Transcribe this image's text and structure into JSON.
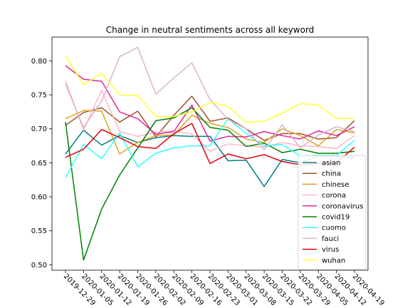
{
  "chart_data": {
    "type": "line",
    "title": "Change in neutral sentiments across all keyword",
    "xlabel": "",
    "ylabel": "",
    "x": [
      "2019-12-29",
      "2020-01-05",
      "2020-01-12",
      "2020-01-19",
      "2020-01-26",
      "2020-02-02",
      "2020-02-09",
      "2020-02-16",
      "2020-02-23",
      "2020-03-01",
      "2020-03-08",
      "2020-03-15",
      "2020-03-22",
      "2020-03-29",
      "2020-04-05",
      "2020-04-12",
      "2020-04-19"
    ],
    "x_tick_step": 1,
    "ylim": [
      0.492,
      0.835
    ],
    "yticks": [
      0.5,
      0.55,
      0.6,
      0.65,
      0.7,
      0.75,
      0.8
    ],
    "grid": false,
    "legend_position": "lower right",
    "series": [
      {
        "name": "asian",
        "color": "#008080",
        "values": [
          0.663,
          0.698,
          0.676,
          0.69,
          0.68,
          0.687,
          0.69,
          0.689,
          0.689,
          0.653,
          0.654,
          0.615,
          0.655,
          0.65,
          0.66,
          0.66,
          0.657
        ]
      },
      {
        "name": "china",
        "color": "#a0522d",
        "values": [
          0.705,
          0.724,
          0.731,
          0.71,
          0.726,
          0.688,
          0.72,
          0.748,
          0.711,
          0.716,
          0.7,
          0.683,
          0.693,
          0.693,
          0.685,
          0.687,
          0.712
        ]
      },
      {
        "name": "chinese",
        "color": "#daa520",
        "values": [
          0.715,
          0.727,
          0.726,
          0.663,
          0.68,
          0.69,
          0.691,
          0.72,
          0.708,
          0.702,
          0.685,
          0.68,
          0.7,
          0.69,
          0.675,
          0.699,
          0.694
        ]
      },
      {
        "name": "corona",
        "color": "#ffb6c1",
        "values": [
          0.771,
          0.698,
          0.757,
          0.696,
          0.689,
          0.695,
          0.697,
          0.692,
          0.667,
          0.678,
          0.675,
          0.673,
          0.68,
          0.675,
          0.674,
          0.671,
          0.69
        ]
      },
      {
        "name": "coronavirus",
        "color": "#e0279b",
        "values": [
          0.793,
          0.773,
          0.77,
          0.725,
          0.715,
          0.692,
          0.696,
          0.735,
          0.682,
          0.689,
          0.688,
          0.696,
          0.69,
          0.685,
          0.697,
          0.69,
          0.703
        ]
      },
      {
        "name": "covid19",
        "color": "#008000",
        "values": [
          0.71,
          0.507,
          0.582,
          0.632,
          0.672,
          0.712,
          0.716,
          0.731,
          0.702,
          0.698,
          0.674,
          0.679,
          0.665,
          0.67,
          0.664,
          0.664,
          0.667
        ]
      },
      {
        "name": "cuomo",
        "color": "#33ffff",
        "values": [
          0.628,
          0.677,
          0.656,
          0.694,
          0.644,
          0.664,
          0.672,
          0.675,
          0.675,
          0.715,
          0.693,
          0.675,
          0.677,
          0.66,
          0.661,
          0.661,
          0.683
        ]
      },
      {
        "name": "fauci",
        "color": "#dbb4cb",
        "values": [
          0.766,
          0.702,
          0.741,
          0.806,
          0.82,
          0.751,
          0.775,
          0.797,
          0.743,
          0.714,
          0.7,
          0.669,
          0.706,
          0.672,
          0.691,
          0.703,
          0.696
        ]
      },
      {
        "name": "virus",
        "color": "#e0000b",
        "values": [
          0.658,
          0.67,
          0.699,
          0.687,
          0.674,
          0.671,
          0.693,
          0.708,
          0.649,
          0.663,
          0.656,
          0.662,
          0.652,
          0.647,
          0.649,
          0.65,
          0.673
        ]
      },
      {
        "name": "wuhan",
        "color": "#ffff33",
        "values": [
          0.807,
          0.765,
          0.782,
          0.75,
          0.749,
          0.718,
          0.718,
          0.725,
          0.739,
          0.733,
          0.71,
          0.711,
          0.723,
          0.737,
          0.735,
          0.715,
          0.716
        ]
      }
    ]
  }
}
